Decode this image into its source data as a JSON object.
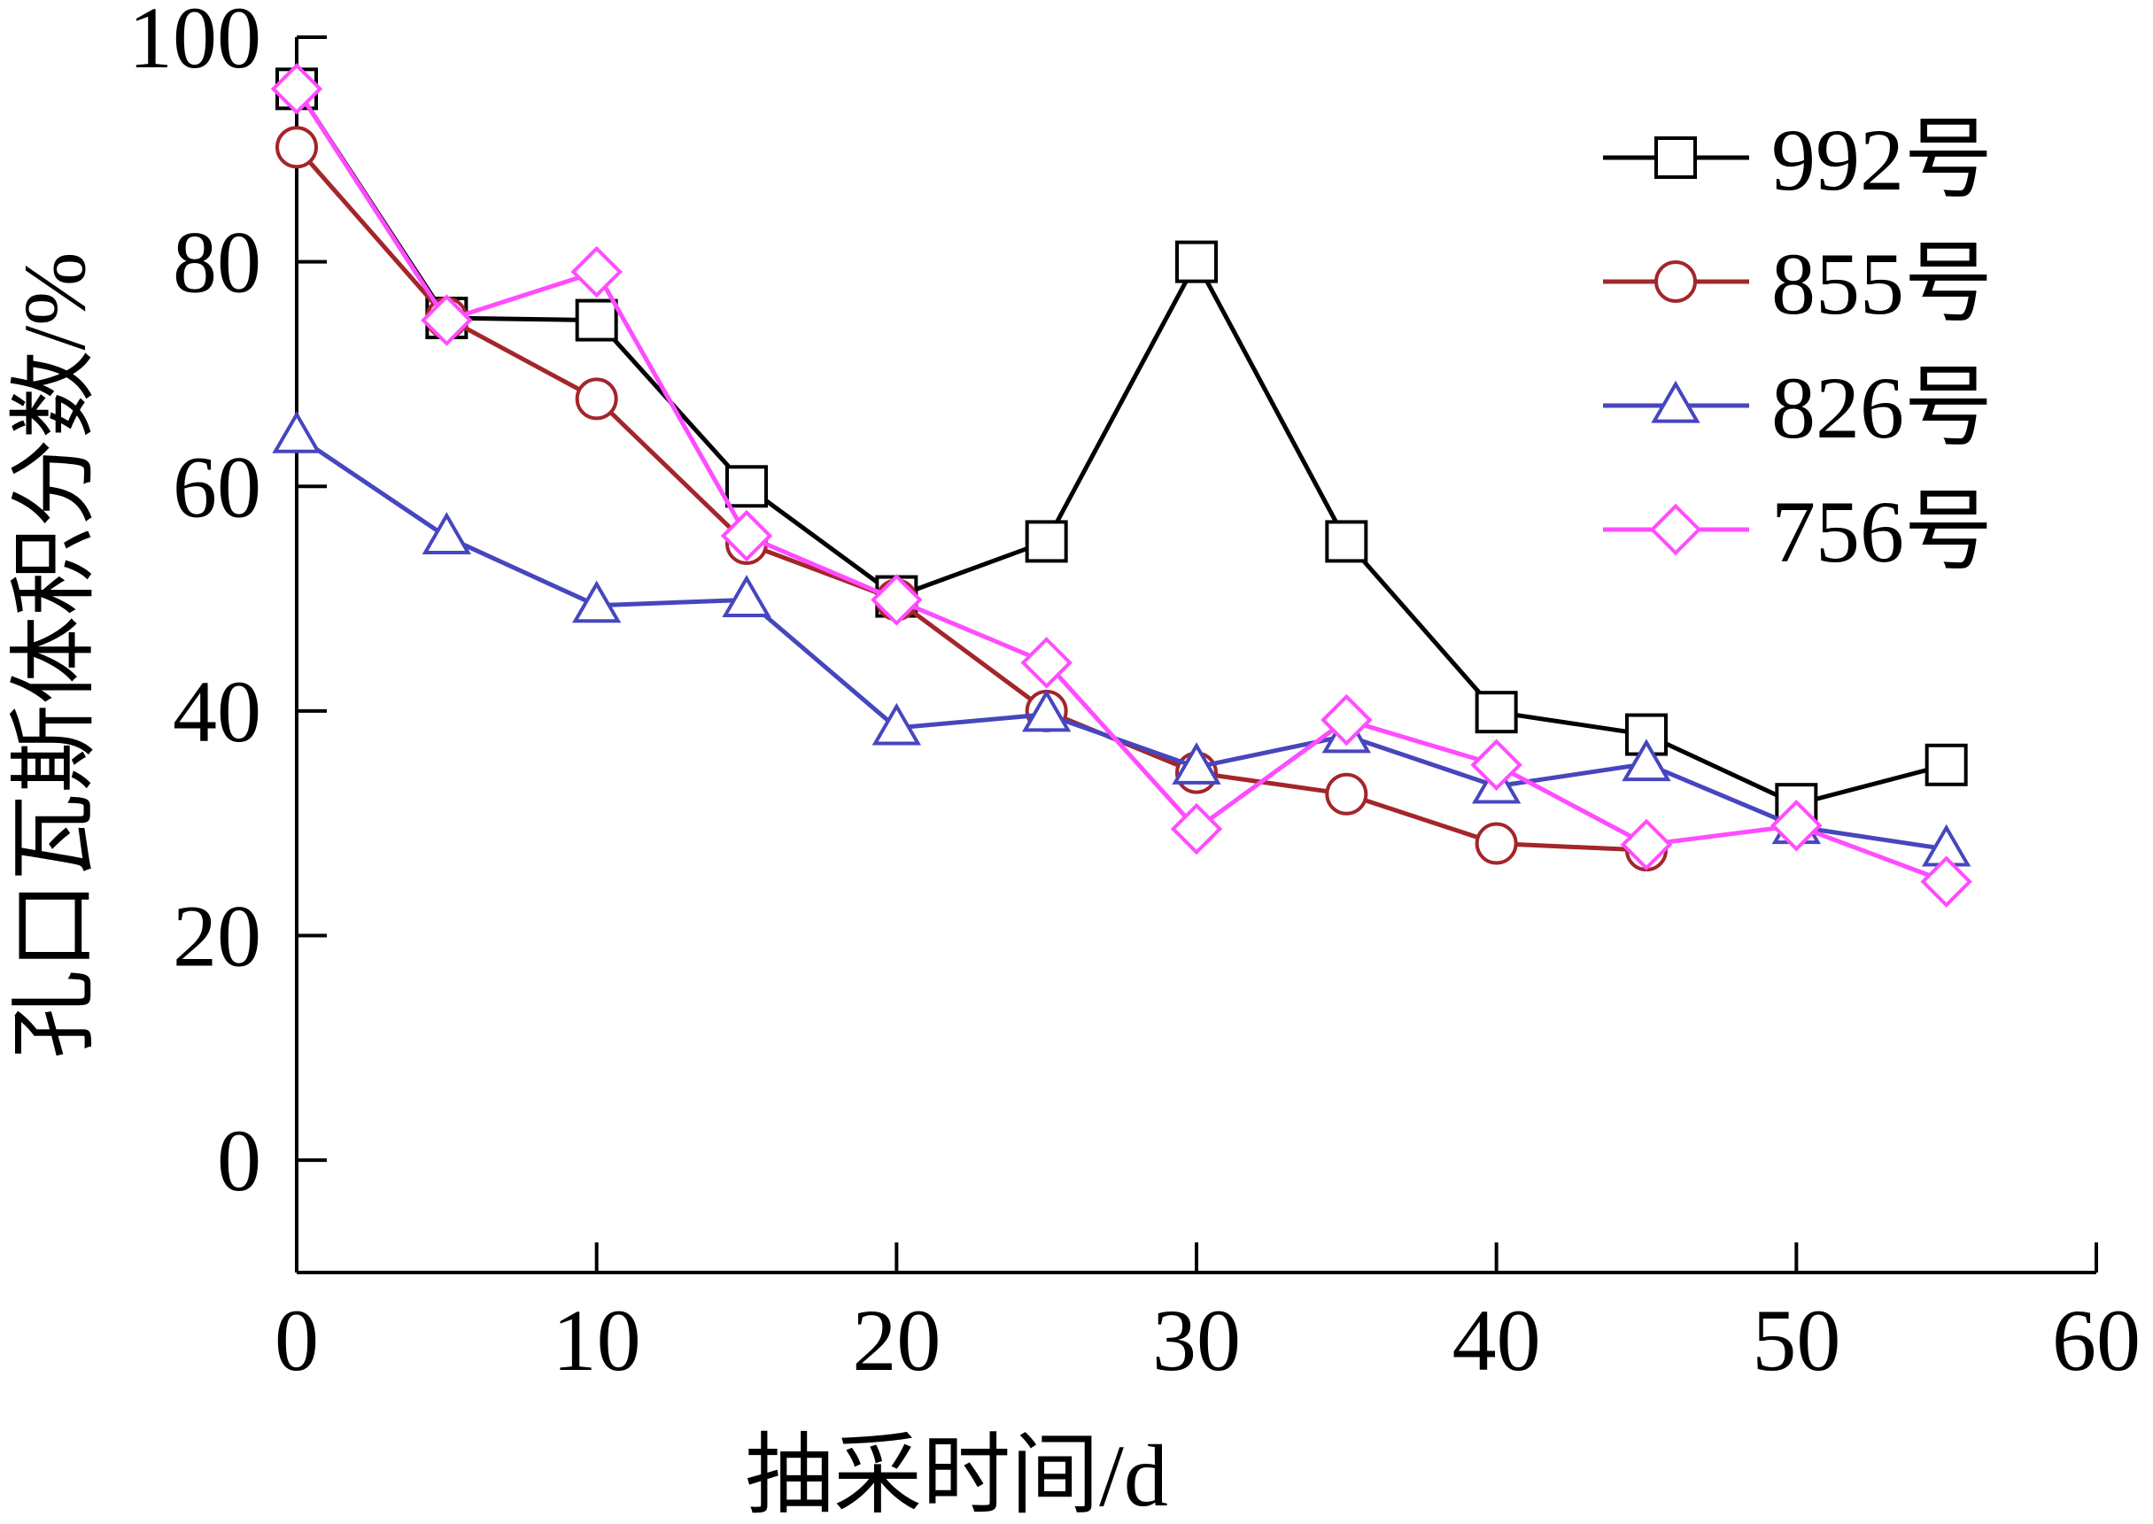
{
  "chart_data": {
    "type": "line",
    "xlabel": "抽采时间/d",
    "ylabel": "孔口瓦斯体积分数/%",
    "xlim": [
      0,
      60
    ],
    "xticks": [
      0,
      10,
      20,
      30,
      40,
      50,
      60
    ],
    "ylim": [
      -10,
      100
    ],
    "yticks": [
      0,
      20,
      40,
      60,
      80,
      100
    ],
    "legend": "upper right",
    "series": [
      {
        "name": "992号",
        "color": "#000000",
        "marker": "square",
        "x": [
          0,
          5,
          10,
          15,
          20,
          25,
          30,
          35,
          40,
          45,
          50,
          55
        ],
        "values": [
          95.4,
          75,
          74.8,
          60,
          50.2,
          55.1,
          80,
          55.1,
          39.9,
          37.9,
          31.7,
          35.2
        ]
      },
      {
        "name": "855号",
        "color": "#a3262a",
        "marker": "circle",
        "x": [
          0,
          5,
          10,
          15,
          20,
          25,
          30,
          35,
          40,
          45
        ],
        "values": [
          90.2,
          75,
          67.8,
          54.9,
          49.9,
          40,
          34.5,
          32.6,
          28.2,
          27.6
        ]
      },
      {
        "name": "826号",
        "color": "#4646be",
        "marker": "triangle",
        "x": [
          0,
          5,
          10,
          15,
          20,
          25,
          30,
          35,
          40,
          45,
          50,
          55
        ],
        "values": [
          64.5,
          55.5,
          49.4,
          49.9,
          38.5,
          39.7,
          35,
          37.8,
          33.3,
          35.3,
          29.7,
          27.7
        ]
      },
      {
        "name": "756号",
        "color": "#ff4cff",
        "marker": "diamond",
        "x": [
          0,
          5,
          10,
          15,
          20,
          25,
          30,
          35,
          40,
          45,
          50,
          55
        ],
        "values": [
          95.4,
          74.8,
          79.1,
          55.6,
          49.9,
          44.3,
          29.5,
          39.2,
          35.2,
          28.1,
          29.8,
          24.8
        ]
      }
    ]
  }
}
